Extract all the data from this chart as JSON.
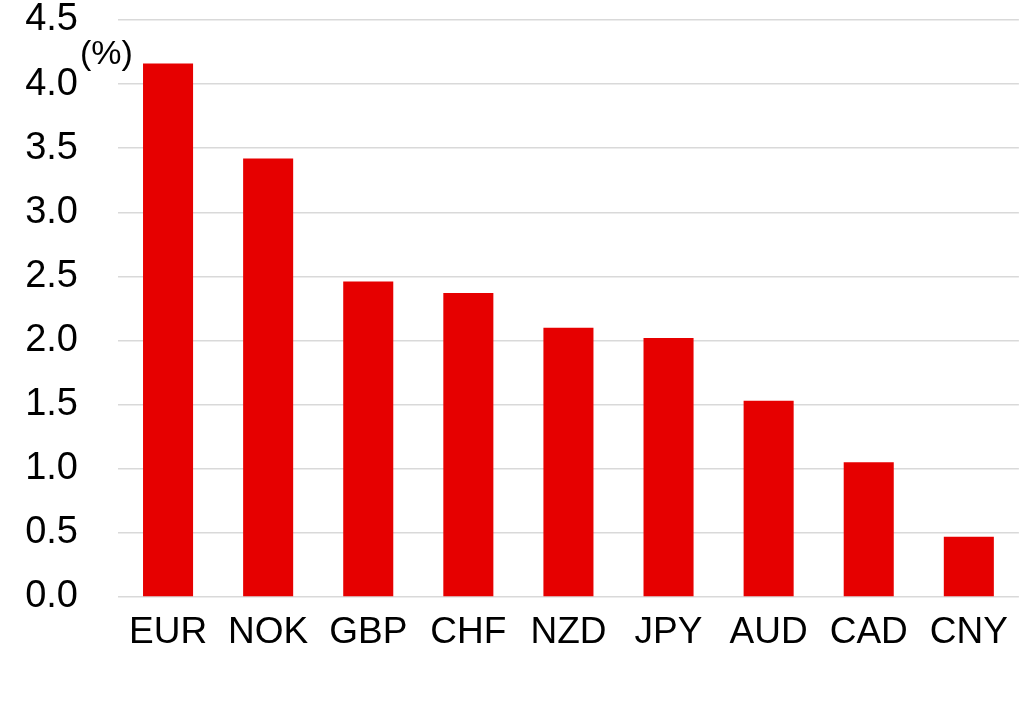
{
  "chart_data": {
    "type": "bar",
    "ylabel": "(%)",
    "categories": [
      "EUR",
      "NOK",
      "GBP",
      "CHF",
      "NZD",
      "JPY",
      "AUD",
      "CAD",
      "CNY"
    ],
    "values": [
      4.16,
      3.42,
      2.46,
      2.37,
      2.1,
      2.02,
      1.53,
      1.05,
      0.47
    ],
    "color": "#e60000",
    "ylim": [
      0,
      4.5
    ],
    "yticks": [
      {
        "value": 0,
        "label": "0.0"
      },
      0.5,
      {
        "value": 1,
        "label": "1.0"
      },
      1.5,
      {
        "value": 2,
        "label": "2.0"
      },
      2.5,
      {
        "value": 3,
        "label": "3.0"
      },
      3.5,
      {
        "value": 4,
        "label": "4.0"
      },
      4.5
    ],
    "grid": "y"
  }
}
